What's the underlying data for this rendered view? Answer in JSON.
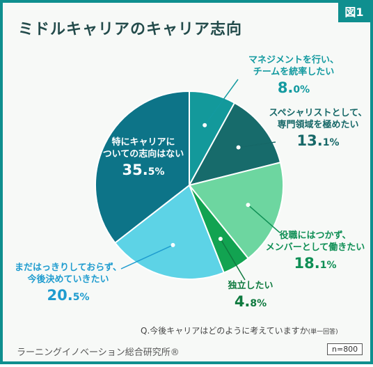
{
  "figure_tag": "図1",
  "chart_data": {
    "type": "pie",
    "title": "ミドルキャリアのキャリア志向",
    "start_angle_deg": 0,
    "direction": "clockwise",
    "slices": [
      {
        "label_lines": [
          "マネジメントを行い、",
          "チームを統率したい"
        ],
        "value": 8.0,
        "value_main": "8.",
        "value_small": "0%",
        "color": "#13999b",
        "text_color": "#139aa0"
      },
      {
        "label_lines": [
          "スペシャリストとして、",
          "専門領域を極めたい"
        ],
        "value": 13.1,
        "value_main": "13.",
        "value_small": "1%",
        "color": "#176b6b",
        "text_color": "#176868"
      },
      {
        "label_lines": [
          "役職にはつかず、",
          "メンバーとして働きたい"
        ],
        "value": 18.1,
        "value_main": "18.",
        "value_small": "1%",
        "color": "#6dd6a0",
        "text_color": "#0f8f55"
      },
      {
        "label_lines": [
          "独立したい"
        ],
        "value": 4.8,
        "value_main": "4.",
        "value_small": "8%",
        "color": "#12a351",
        "text_color": "#0f7a3f"
      },
      {
        "label_lines": [
          "まだはっきりしておらず、",
          "今後決めていきたい"
        ],
        "value": 20.5,
        "value_main": "20.",
        "value_small": "5%",
        "color": "#5dd3e6",
        "text_color": "#1f9ccf"
      },
      {
        "label_lines": [
          "特にキャリアに",
          "ついての志向はない"
        ],
        "value": 35.5,
        "value_main": "35.",
        "value_small": "5%",
        "color": "#0d7488",
        "text_color": "#ffffff"
      }
    ]
  },
  "question": {
    "main": "Q.今後キャリアはどのように考えていますか",
    "note": "(単一回答)"
  },
  "publisher": "ラーニングイノベーション総合研究所®",
  "n_label": "n=800"
}
